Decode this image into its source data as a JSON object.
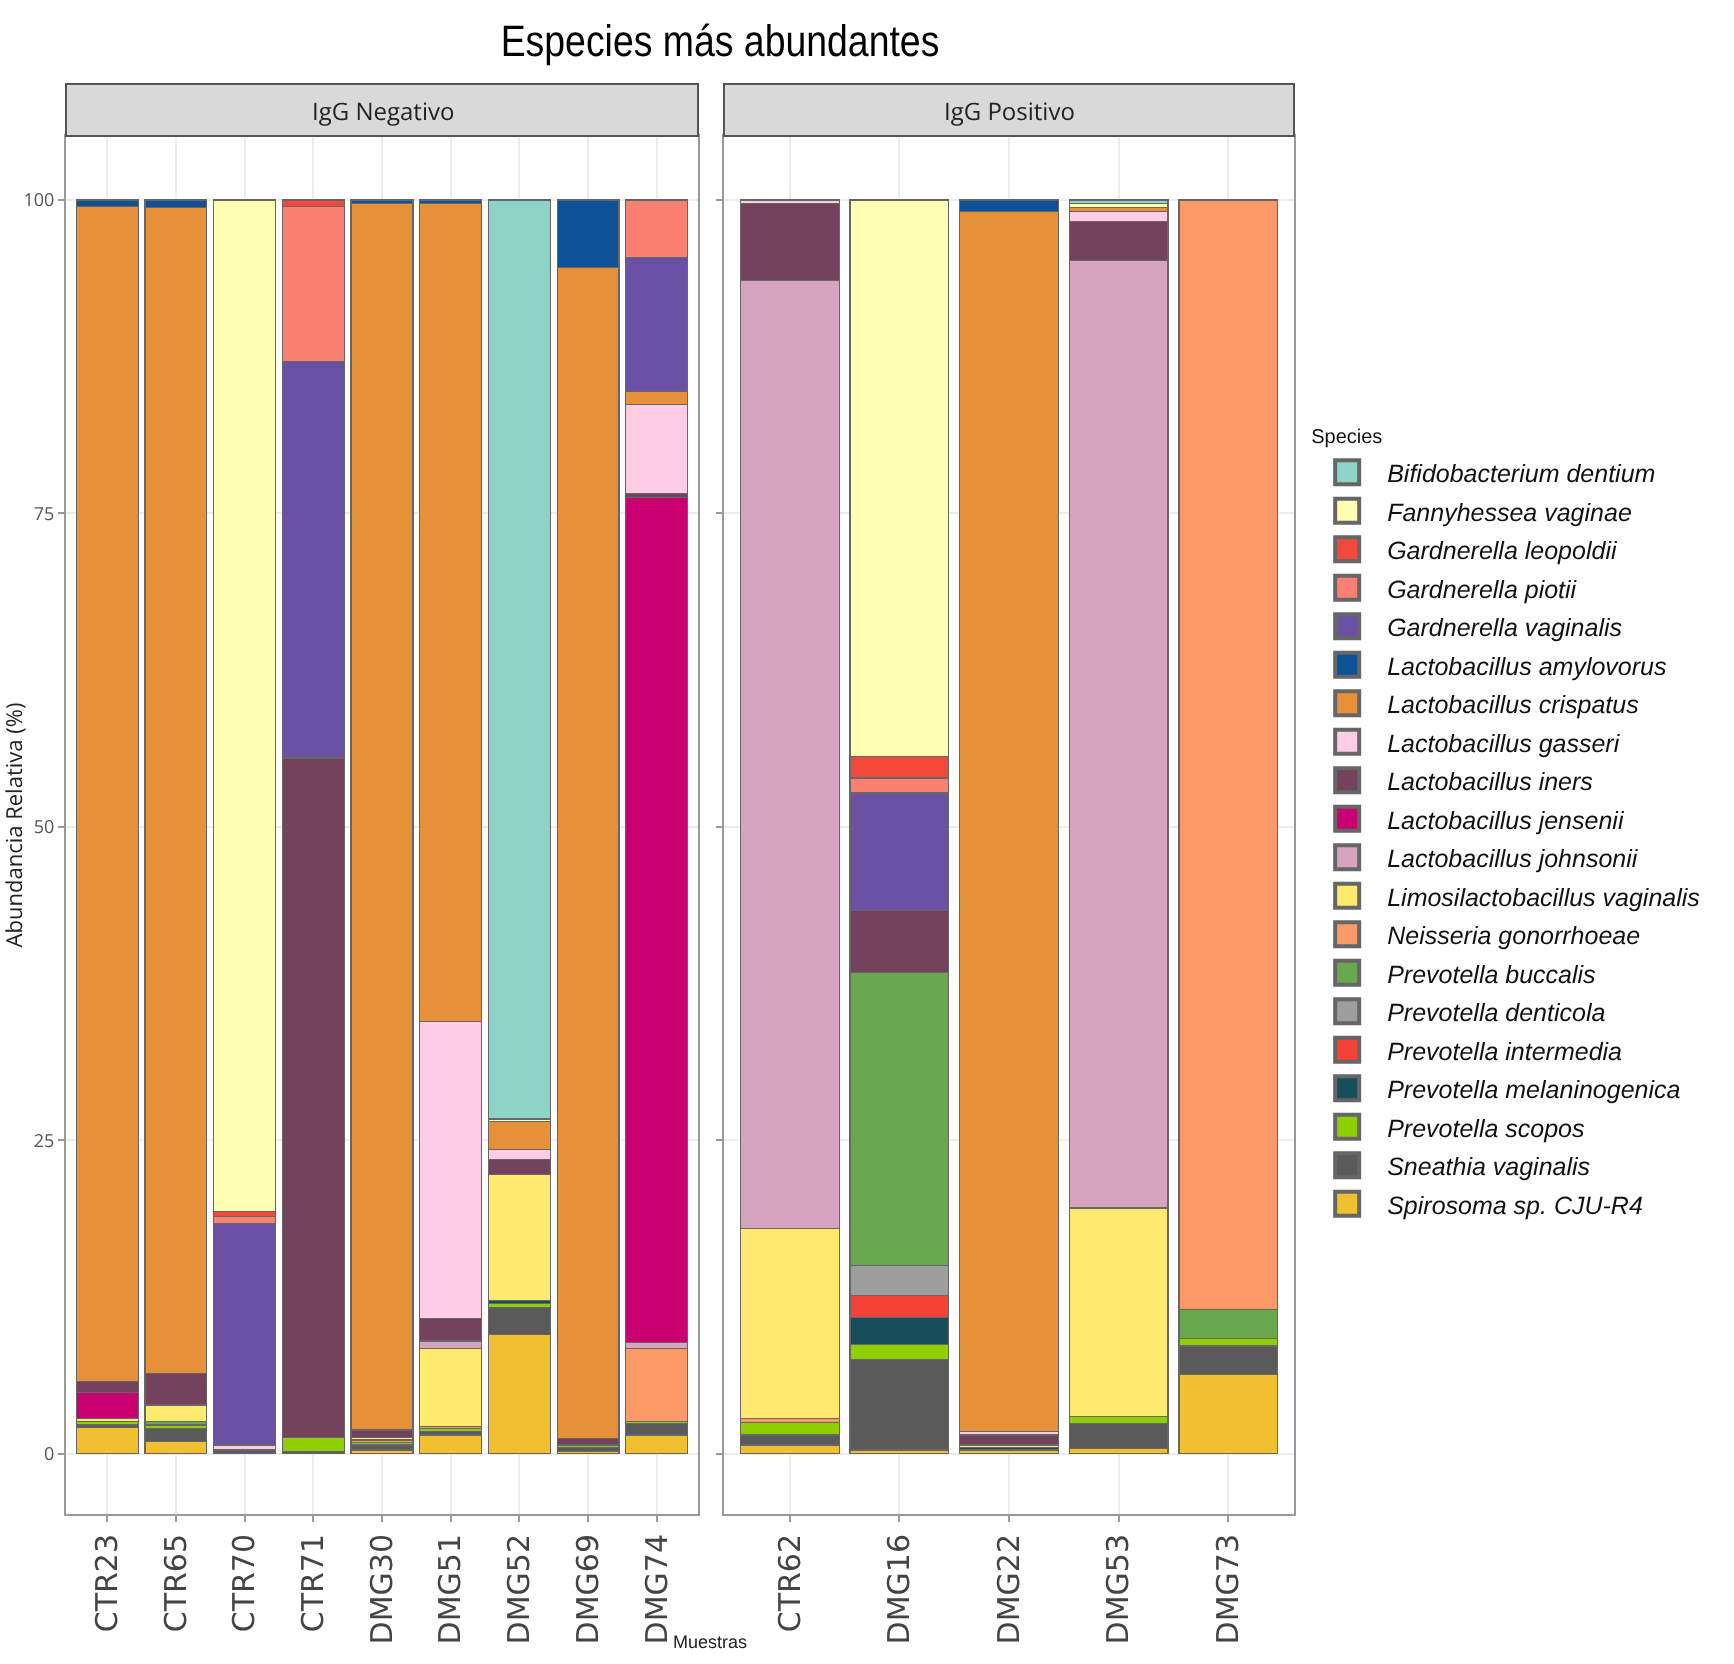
{
  "chart_data": [
    {
      "type": "bar",
      "title": "Especies más abundantes",
      "subtitle": "IgG Negativo",
      "xlabel": "Muestras",
      "ylabel": "Abundancia Relativa (%)",
      "legend_title": "Species",
      "stacked": true,
      "grid": true,
      "legend": "right",
      "ylim": [
        -4.8,
        105.1
      ],
      "yticks": [
        0,
        25,
        50,
        75,
        100
      ],
      "categories": [
        "CTR23",
        "CTR65",
        "CTR70",
        "CTR71",
        "DMG30",
        "DMG51",
        "DMG52",
        "DMG69",
        "DMG74"
      ],
      "series": [
        {
          "name": "Spirosoma sp. CJU-R4",
          "color": "#f0c030",
          "values": [
            2.1,
            1.0,
            null,
            null,
            0.3,
            1.5,
            9.5,
            0.2,
            1.5
          ]
        },
        {
          "name": "Sneathia vaginalis",
          "color": "#5a5a5a",
          "values": [
            0.2,
            1.0,
            0.3,
            0.2,
            0.4,
            0.3,
            2.2,
            0.3,
            0.9
          ]
        },
        {
          "name": "Prevotella scopos",
          "color": "#8fcf00",
          "values": [
            0.3,
            0.3,
            null,
            1.1,
            0.2,
            0.2,
            0.3,
            0.2,
            0.2
          ]
        },
        {
          "name": "Prevotella melaninogenica",
          "color": "#164e5a",
          "values": [
            null,
            null,
            null,
            null,
            null,
            null,
            0.2,
            null,
            null
          ]
        },
        {
          "name": "Prevotella intermedia",
          "color": "#f44336",
          "values": [
            null,
            null,
            null,
            null,
            null,
            null,
            null,
            null,
            null
          ]
        },
        {
          "name": "Prevotella denticola",
          "color": "#9e9e9e",
          "values": [
            null,
            null,
            null,
            null,
            null,
            null,
            null,
            null,
            null
          ]
        },
        {
          "name": "Prevotella buccalis",
          "color": "#6aa84f",
          "values": [
            null,
            0.3,
            null,
            null,
            null,
            null,
            null,
            null,
            null
          ]
        },
        {
          "name": "Neisseria gonorrhoeae",
          "color": "#fd9966",
          "values": [
            null,
            null,
            null,
            null,
            0.2,
            0.2,
            null,
            null,
            5.8
          ]
        },
        {
          "name": "Limosilactobacillus vaginalis",
          "color": "#ffe96e",
          "values": [
            0.2,
            1.3,
            null,
            null,
            0.2,
            6.2,
            10.1,
            null,
            null
          ]
        },
        {
          "name": "Lactobacillus johnsonii",
          "color": "#d7a4c0",
          "values": [
            null,
            null,
            null,
            null,
            null,
            0.6,
            null,
            null,
            0.5
          ]
        },
        {
          "name": "Lactobacillus jensenii",
          "color": "#c9006f",
          "values": [
            2.1,
            null,
            null,
            null,
            null,
            null,
            null,
            null,
            67.4
          ]
        },
        {
          "name": "Lactobacillus iners",
          "color": "#74425c",
          "values": [
            0.9,
            2.5,
            null,
            54.2,
            0.6,
            1.8,
            1.2,
            0.5,
            0.3
          ]
        },
        {
          "name": "Lactobacillus gasseri",
          "color": "#fccde5",
          "values": [
            null,
            null,
            0.4,
            null,
            null,
            23.7,
            0.8,
            null,
            7.1
          ]
        },
        {
          "name": "Lactobacillus crispatus",
          "color": "#e6913a",
          "values": [
            93.7,
            93.0,
            null,
            null,
            97.8,
            65.2,
            2.2,
            93.4,
            1.0
          ]
        },
        {
          "name": "Lactobacillus amylovorus",
          "color": "#0d5296",
          "values": [
            0.5,
            0.6,
            null,
            null,
            0.3,
            0.3,
            null,
            5.4,
            null
          ]
        },
        {
          "name": "Gardnerella vaginalis",
          "color": "#6a51a3",
          "values": [
            null,
            null,
            17.7,
            31.6,
            null,
            null,
            null,
            null,
            10.7
          ]
        },
        {
          "name": "Gardnerella piotii",
          "color": "#fb8072",
          "values": [
            null,
            null,
            0.5,
            12.4,
            null,
            null,
            null,
            null,
            4.6
          ]
        },
        {
          "name": "Gardnerella leopoldii",
          "color": "#f14a3a",
          "values": [
            null,
            null,
            0.4,
            0.5,
            null,
            null,
            null,
            null,
            null
          ]
        },
        {
          "name": "Fannyhessea vaginae",
          "color": "#ffffb3",
          "values": [
            null,
            null,
            80.7,
            null,
            null,
            null,
            0.2,
            null,
            null
          ]
        },
        {
          "name": "Bifidobacterium dentium",
          "color": "#8dd3c7",
          "values": [
            null,
            null,
            null,
            null,
            null,
            null,
            73.3,
            null,
            null
          ]
        }
      ]
    },
    {
      "type": "bar",
      "subtitle": "IgG Positivo",
      "stacked": true,
      "grid": true,
      "tick_labels": "x",
      "ylim": [
        -4.8,
        105.1
      ],
      "yticks": [
        0,
        25,
        50,
        75,
        100
      ],
      "categories": [
        "CTR62",
        "DMG16",
        "DMG22",
        "DMG53",
        "DMG73"
      ],
      "series": [
        {
          "color": "#f0c030",
          "values": [
            0.7,
            0.3,
            0.3,
            0.4,
            6.3
          ]
        },
        {
          "color": "#5a5a5a",
          "values": [
            0.8,
            7.2,
            null,
            2.0,
            2.3
          ]
        },
        {
          "color": "#8fcf00",
          "values": [
            1.0,
            1.2,
            null,
            0.6,
            0.6
          ]
        },
        {
          "color": "#164e5a",
          "values": [
            null,
            2.2,
            0.2,
            null,
            null
          ]
        },
        {
          "color": "#f44336",
          "values": [
            null,
            1.7,
            null,
            null,
            null
          ]
        },
        {
          "color": "#9e9e9e",
          "values": [
            null,
            2.4,
            null,
            null,
            null
          ]
        },
        {
          "color": "#6aa84f",
          "values": [
            null,
            23.4,
            null,
            null,
            2.3
          ]
        },
        {
          "color": "#fd9966",
          "values": [
            0.3,
            null,
            null,
            null,
            88.5
          ]
        },
        {
          "color": "#ffe96e",
          "values": [
            15.2,
            null,
            0.2,
            16.6,
            null
          ]
        },
        {
          "color": "#d7a4c0",
          "values": [
            75.6,
            null,
            null,
            75.6,
            null
          ]
        },
        {
          "color": "#74425c",
          "values": [
            6.1,
            4.9,
            0.8,
            3.1,
            null
          ]
        },
        {
          "color": "#fccde5",
          "values": [
            0.3,
            null,
            0.3,
            0.8,
            null
          ]
        },
        {
          "color": "#e6913a",
          "values": [
            null,
            null,
            97.3,
            0.3,
            null
          ]
        },
        {
          "color": "#0d5296",
          "values": [
            null,
            null,
            0.9,
            null,
            null
          ]
        },
        {
          "color": "#6a51a3",
          "values": [
            null,
            9.4,
            null,
            null,
            null
          ]
        },
        {
          "color": "#fb8072",
          "values": [
            null,
            1.2,
            null,
            null,
            null
          ]
        },
        {
          "color": "#f14a3a",
          "values": [
            null,
            1.7,
            null,
            null,
            null
          ]
        },
        {
          "color": "#ffffb3",
          "values": [
            null,
            44.4,
            null,
            0.3,
            null
          ]
        },
        {
          "color": "#8dd3c7",
          "values": [
            null,
            null,
            null,
            0.3,
            null
          ]
        }
      ]
    }
  ]
}
